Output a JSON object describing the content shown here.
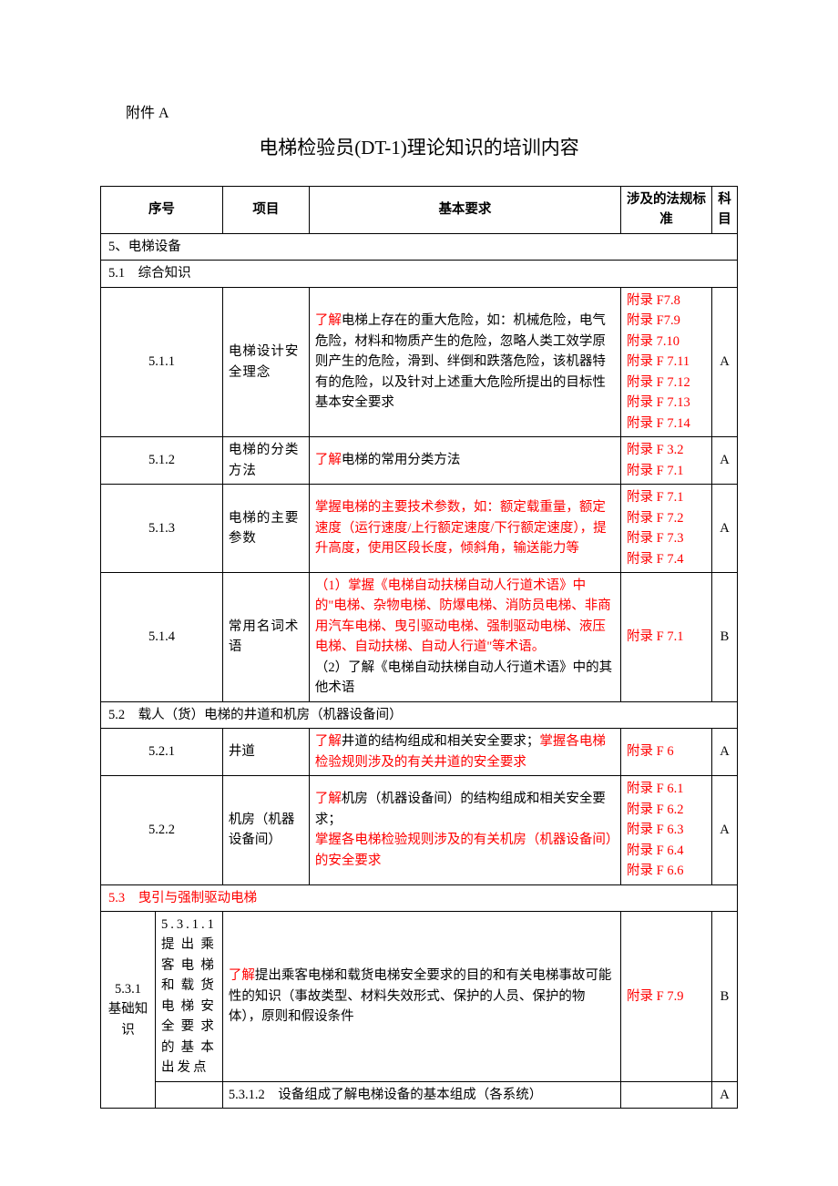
{
  "appendix_label": "附件 A",
  "title": "电梯检验员(DT-1)理论知识的培训内容",
  "headers": {
    "num": "序号",
    "item": "项目",
    "req": "基本要求",
    "ref": "涉及的法规标准",
    "subj": "科目"
  },
  "section5": "5、电梯设备",
  "section51": "5.1　综合知识",
  "r511_num": "5.1.1",
  "r511_item": "电梯设计安全理念",
  "r511_req_red": "了解",
  "r511_req": "电梯上存在的重大危险，如：机械危险，电气危险，材料和物质产生的危险，忽略人类工效学原则产生的危险，滑到、绊倒和跌落危险，该机器特有的危险，以及针对上述重大危险所提出的目标性基本安全要求",
  "r511_ref1": "附录 F7.8",
  "r511_ref2": "附录 F7.9",
  "r511_ref3": "附录 7.10",
  "r511_ref4": "附录 F 7.11",
  "r511_ref5": "附录 F 7.12",
  "r511_ref6": "附录 F 7.13",
  "r511_ref7": "附录 F 7.14",
  "r511_subj": "A",
  "r512_num": "5.1.2",
  "r512_item": "电梯的分类方法",
  "r512_req_red": "了解",
  "r512_req": "电梯的常用分类方法",
  "r512_ref1": "附录 F 3.2",
  "r512_ref2": "附录 F 7.1",
  "r512_subj": "A",
  "r513_num": "5.1.3",
  "r513_item": "电梯的主要参数",
  "r513_req": "掌握电梯的主要技术参数，如：额定载重量，额定速度（运行速度/上行额定速度/下行额定速度），提升高度，使用区段长度，倾斜角，输送能力等",
  "r513_ref1": "附录 F 7.1",
  "r513_ref2": "附录 F 7.2",
  "r513_ref3": "附录 F 7.3",
  "r513_ref4": "附录 F 7.4",
  "r513_subj": "A",
  "r514_num": "5.1.4",
  "r514_item": "常用名词术语",
  "r514_req1": "（1）掌握《电梯自动扶梯自动人行道术语》中的\"电梯、杂物电梯、防爆电梯、消防员电梯、非商用汽车电梯、曳引驱动电梯、强制驱动电梯、液压电梯、自动扶梯、自动人行道\"等术语。",
  "r514_req2": "（2）了解《电梯自动扶梯自动人行道术语》中的其他术语",
  "r514_ref": "附录 F 7.1",
  "r514_subj": "B",
  "section52": "5.2　载人（货）电梯的井道和机房（机器设备间）",
  "r521_num": "5.2.1",
  "r521_item": "井道",
  "r521_req_a": "了解",
  "r521_req_b": "井道的结构组成和相关安全要求；",
  "r521_req_c": "掌握各电梯检验规则涉及的有关井道的安全要求",
  "r521_ref": "附录 F 6",
  "r521_subj": "A",
  "r522_num": "5.2.2",
  "r522_item": "机房（机器设备间）",
  "r522_req_a": "了解",
  "r522_req_b": "机房（机器设备间）的结构组成和相关安全要求；",
  "r522_req_c": "掌握各电梯检验规则涉及的有关机房（机器设备间）的安全要求",
  "r522_ref1": "附录 F 6.1",
  "r522_ref2": "附录 F 6.2",
  "r522_ref3": "附录 F 6.3",
  "r522_ref4": "附录 F 6.4",
  "r522_ref5": "附录 F 6.6",
  "r522_subj": "A",
  "section53": "5.3　曳引与强制驱动电梯",
  "r531_num": "5.3.1 基础知识",
  "r5311_item": "5.3.1.1 提出乘客电梯和载货电梯安全要求的基本出发点",
  "r5311_req_red": "了解",
  "r5311_req": "提出乘客电梯和载货电梯安全要求的目的和有关电梯事故可能性的知识（事故类型、材料失效形式、保护的人员、保护的物体），原则和假设条件",
  "r5311_ref": "附录 F 7.9",
  "r5311_subj": "B",
  "r5312_req": "5.3.1.2　设备组成了解电梯设备的基本组成（各系统）",
  "r5312_subj": "A"
}
